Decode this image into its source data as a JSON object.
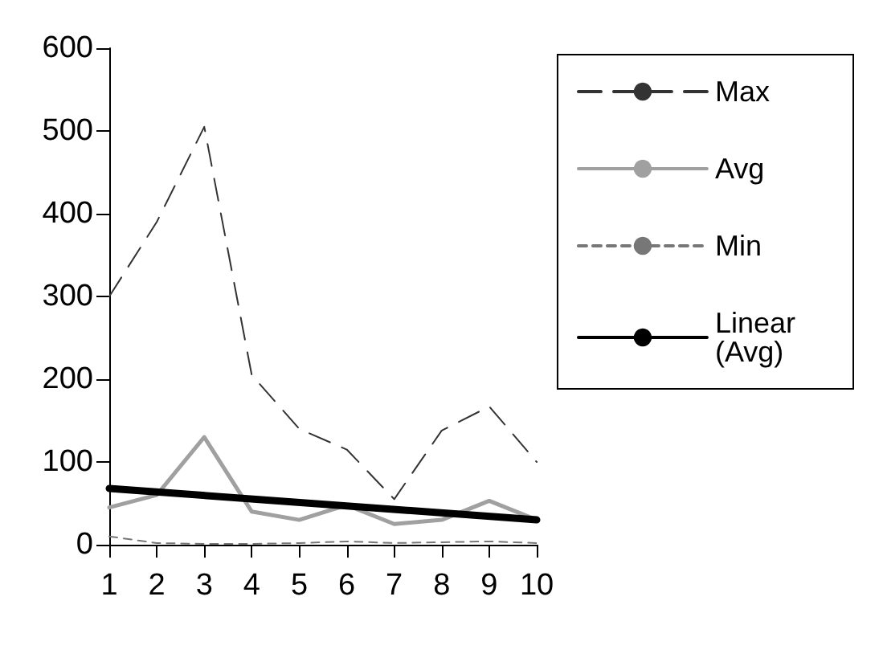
{
  "chart_data": {
    "type": "line",
    "x": [
      1,
      2,
      3,
      4,
      5,
      6,
      7,
      8,
      9,
      10
    ],
    "series": [
      {
        "name": "Max",
        "color": "#333333",
        "line_style": "dashed",
        "values": [
          300,
          390,
          505,
          205,
          140,
          115,
          55,
          138,
          167,
          100
        ]
      },
      {
        "name": "Avg",
        "color": "#a0a0a0",
        "line_style": "solid",
        "values": [
          45,
          60,
          130,
          40,
          30,
          48,
          25,
          30,
          53,
          30
        ]
      },
      {
        "name": "Min",
        "color": "#777777",
        "line_style": "dotted",
        "values": [
          10,
          2,
          1,
          1,
          2,
          4,
          2,
          3,
          4,
          2
        ]
      },
      {
        "name": "Linear (Avg)",
        "color": "#000000",
        "line_style": "solid",
        "x": [
          1,
          10
        ],
        "values": [
          68,
          30
        ]
      }
    ],
    "xlim": [
      1,
      10
    ],
    "xticks": [
      1,
      2,
      3,
      4,
      5,
      6,
      7,
      8,
      9,
      10
    ],
    "ylim": [
      0,
      600
    ],
    "yticks": [
      0,
      100,
      200,
      300,
      400,
      500,
      600
    ],
    "grid": false,
    "legend": "right",
    "marker": "none"
  }
}
